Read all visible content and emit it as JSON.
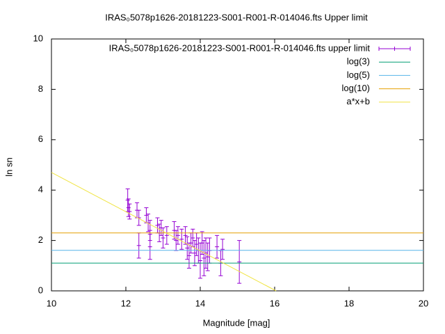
{
  "chart_data": {
    "type": "errorbar",
    "title": "IRAS₀5078p1626-20181223-S001-R001-R-014046.fts Upper limit",
    "xlabel": "Magnitude [mag]",
    "ylabel": "ln sn",
    "xlim": [
      10,
      20
    ],
    "ylim": [
      0,
      10
    ],
    "xticks": [
      10,
      12,
      14,
      16,
      18,
      20
    ],
    "yticks": [
      0,
      2,
      4,
      6,
      8,
      10
    ],
    "grid": false,
    "legend": "top-right",
    "series": [
      {
        "name": "IRAS₀5078p1626-20181223-S001-R001-R-014046.fts upper limit",
        "style": "errorbars",
        "color": "#9400d3",
        "x": [
          12.05,
          12.07,
          12.1,
          12.3,
          12.35,
          12.35,
          12.55,
          12.6,
          12.65,
          12.65,
          12.85,
          12.9,
          12.95,
          13.0,
          13.1,
          13.3,
          13.35,
          13.4,
          13.5,
          13.6,
          13.65,
          13.7,
          13.75,
          13.8,
          13.85,
          13.9,
          13.95,
          14.0,
          14.05,
          14.1,
          14.15,
          14.2,
          14.25,
          14.45,
          14.55,
          14.6,
          15.05
        ],
        "values": [
          3.6,
          3.3,
          3.15,
          3.2,
          2.9,
          1.8,
          3.0,
          2.7,
          2.4,
          1.75,
          2.6,
          2.3,
          2.5,
          2.1,
          2.2,
          2.4,
          2.0,
          2.2,
          2.05,
          2.2,
          1.7,
          1.4,
          1.9,
          2.1,
          1.5,
          1.85,
          1.6,
          1.2,
          1.9,
          1.3,
          1.5,
          1.35,
          1.6,
          1.75,
          1.1,
          1.65,
          1.15
        ],
        "errors": [
          0.45,
          0.35,
          0.3,
          0.3,
          0.3,
          0.5,
          0.3,
          0.35,
          0.4,
          0.5,
          0.3,
          0.35,
          0.3,
          0.4,
          0.35,
          0.35,
          0.4,
          0.35,
          0.4,
          0.35,
          0.45,
          0.5,
          0.4,
          0.35,
          0.5,
          0.45,
          0.5,
          0.7,
          0.45,
          0.7,
          0.6,
          0.55,
          0.5,
          0.45,
          0.5,
          0.4,
          0.85
        ]
      },
      {
        "name": "log(3)",
        "style": "lines",
        "color": "#009e73",
        "x": [
          10,
          20
        ],
        "values": [
          1.1,
          1.1
        ]
      },
      {
        "name": "log(5)",
        "style": "lines",
        "color": "#56b4e9",
        "x": [
          10,
          20
        ],
        "values": [
          1.61,
          1.61
        ]
      },
      {
        "name": "log(10)",
        "style": "lines",
        "color": "#e69f00",
        "x": [
          10,
          20
        ],
        "values": [
          2.3,
          2.3
        ]
      },
      {
        "name": "a*x+b",
        "style": "lines",
        "color": "#f0e442",
        "x": [
          10,
          16.04
        ],
        "values": [
          4.7,
          0
        ]
      }
    ]
  }
}
